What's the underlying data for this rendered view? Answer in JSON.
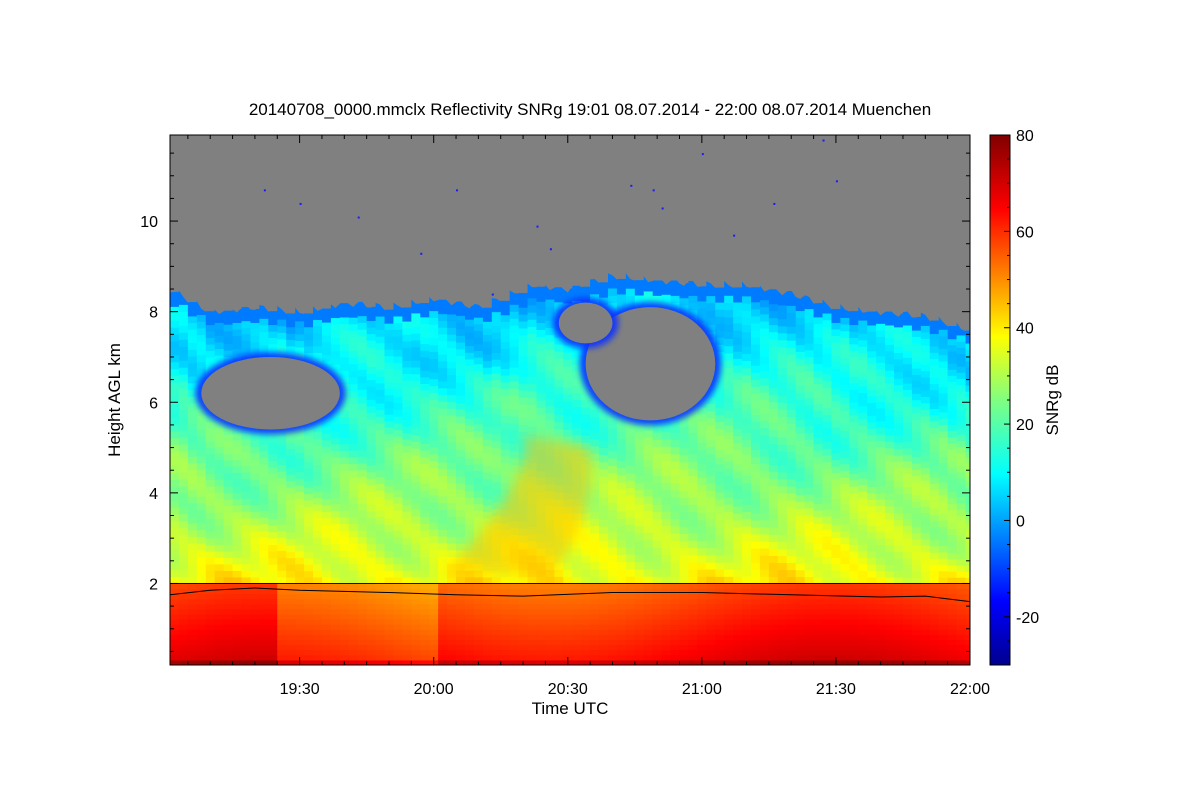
{
  "chart_data": {
    "type": "heatmap",
    "title": "20140708_0000.mmclx Reflectivity SNRg   19:01 08.07.2014 - 22:00 08.07.2014 Muenchen",
    "xlabel": "Time UTC",
    "ylabel": "Height AGL km",
    "x_ticks": [
      "19:30",
      "20:00",
      "20:30",
      "21:00",
      "21:30",
      "22:00"
    ],
    "x_range_minutes": [
      1141,
      1320
    ],
    "x_tick_minutes": [
      1170,
      1200,
      1230,
      1260,
      1290,
      1320
    ],
    "y_ticks": [
      2,
      4,
      6,
      8,
      10
    ],
    "y_range": [
      0.2,
      11.9
    ],
    "colorbar": {
      "label": "SNRg dB",
      "range": [
        -30,
        80
      ],
      "ticks": [
        -20,
        0,
        20,
        40,
        60,
        80
      ],
      "colormap": "jet"
    },
    "no_data_color": "#808080",
    "field": {
      "cloud_top_km": [
        [
          1141,
          8.5
        ],
        [
          1150,
          8.0
        ],
        [
          1160,
          8.1
        ],
        [
          1170,
          8.0
        ],
        [
          1180,
          8.2
        ],
        [
          1190,
          8.1
        ],
        [
          1200,
          8.3
        ],
        [
          1210,
          8.1
        ],
        [
          1222,
          8.6
        ],
        [
          1230,
          8.5
        ],
        [
          1240,
          8.8
        ],
        [
          1250,
          8.7
        ],
        [
          1260,
          8.6
        ],
        [
          1270,
          8.6
        ],
        [
          1280,
          8.4
        ],
        [
          1290,
          8.1
        ],
        [
          1300,
          8.0
        ],
        [
          1310,
          7.9
        ],
        [
          1320,
          7.6
        ]
      ],
      "gaps": [
        {
          "x": [
            1148,
            1179
          ],
          "y": [
            5.4,
            7.0
          ]
        },
        {
          "x": [
            1234,
            1263
          ],
          "y": [
            5.6,
            8.1
          ]
        },
        {
          "x": [
            1228,
            1240
          ],
          "y": [
            7.3,
            8.2
          ]
        }
      ],
      "boundary_layer_top_km": 2.0,
      "boundary_line_km": [
        [
          1141,
          1.75
        ],
        [
          1150,
          1.85
        ],
        [
          1160,
          1.9
        ],
        [
          1170,
          1.85
        ],
        [
          1190,
          1.8
        ],
        [
          1205,
          1.75
        ],
        [
          1220,
          1.72
        ],
        [
          1240,
          1.8
        ],
        [
          1260,
          1.8
        ],
        [
          1280,
          1.75
        ],
        [
          1300,
          1.7
        ],
        [
          1310,
          1.72
        ],
        [
          1320,
          1.6
        ]
      ],
      "snr_cloud_top_db": 5,
      "snr_cloud_base_db": 40,
      "snr_near_ground_db": 68
    }
  }
}
